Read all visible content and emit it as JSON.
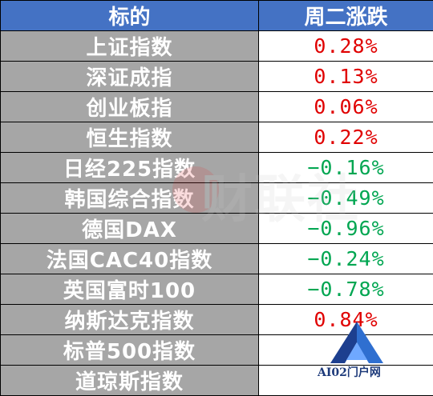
{
  "header": {
    "name": "标的",
    "change": "周二涨跌"
  },
  "rows": [
    {
      "name": "上证指数",
      "change": "0.28%",
      "dir": "up"
    },
    {
      "name": "深证成指",
      "change": "0.13%",
      "dir": "up"
    },
    {
      "name": "创业板指",
      "change": "0.06%",
      "dir": "up"
    },
    {
      "name": "恒生指数",
      "change": "0.22%",
      "dir": "up"
    },
    {
      "name": "日经225指数",
      "change": "−0.16%",
      "dir": "down"
    },
    {
      "name": "韩国综合指数",
      "change": "−0.49%",
      "dir": "down"
    },
    {
      "name": "德国DAX",
      "change": "−0.96%",
      "dir": "down"
    },
    {
      "name": "法国CAC40指数",
      "change": "−0.24%",
      "dir": "down"
    },
    {
      "name": "英国富时100",
      "change": "−0.78%",
      "dir": "down"
    },
    {
      "name": "纳斯达克指数",
      "change": "0.84%",
      "dir": "up"
    },
    {
      "name": "标普500指数",
      "change": "",
      "dir": ""
    },
    {
      "name": "道琼斯指数",
      "change": "",
      "dir": ""
    }
  ],
  "colors": {
    "header_bg": "#4472c4",
    "name_bg": "#a6a6a6",
    "up": "#e00000",
    "down": "#00a651"
  },
  "watermark": {
    "text": "财联社",
    "icon": "cls-logo-icon"
  },
  "logo": {
    "text": "AI02门户网",
    "icon": "ai02-logo-icon"
  }
}
